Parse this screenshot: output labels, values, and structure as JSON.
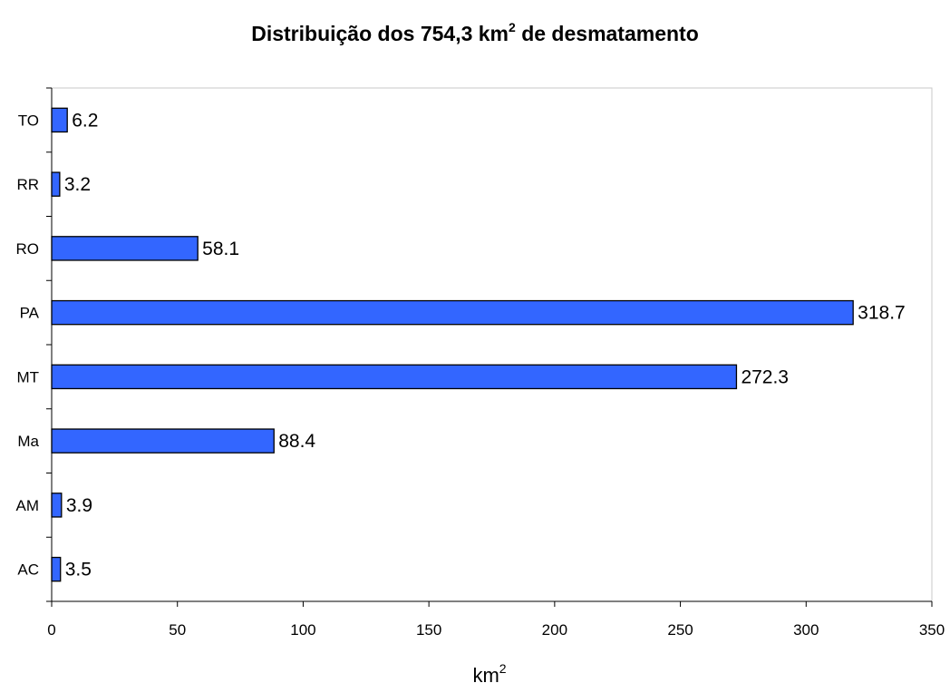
{
  "chart_data": {
    "type": "bar",
    "orientation": "horizontal",
    "title_main": "Distribuição dos 754,3 km",
    "title_sup": "2",
    "title_end": " de desmatamento",
    "categories": [
      "TO",
      "RR",
      "RO",
      "PA",
      "MT",
      "Ma",
      "AM",
      "AC"
    ],
    "values": [
      6.2,
      3.2,
      58.1,
      318.7,
      272.3,
      88.4,
      3.9,
      3.5
    ],
    "value_labels": [
      "6.2",
      "3.2",
      "58.1",
      "318.7",
      "272.3",
      "88.4",
      "3.9",
      "3.5"
    ],
    "xlabel_main": "km",
    "xlabel_sup": "2",
    "xlim": [
      0,
      350
    ],
    "xticks": [
      0,
      50,
      100,
      150,
      200,
      250,
      300,
      350
    ],
    "xtick_labels": [
      "0",
      "50",
      "100",
      "150",
      "200",
      "250",
      "300",
      "350"
    ],
    "bar_color": "#3366ff",
    "grid": false,
    "legend": "none"
  }
}
